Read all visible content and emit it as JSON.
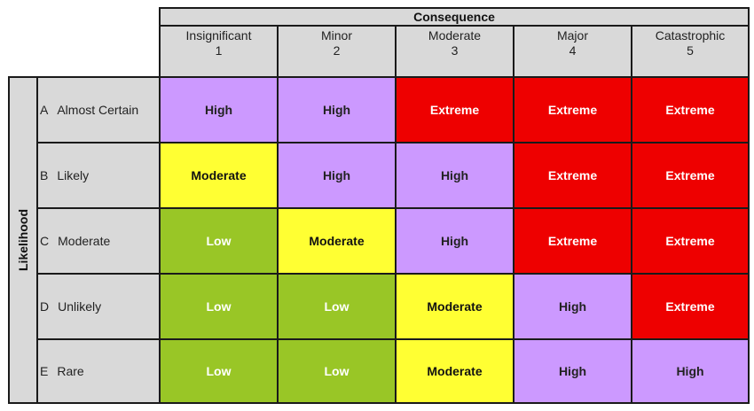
{
  "header": {
    "title": "Consequence"
  },
  "side_label": "Likelihood",
  "columns": [
    {
      "name": "Insignificant",
      "number": "1"
    },
    {
      "name": "Minor",
      "number": "2"
    },
    {
      "name": "Moderate",
      "number": "3"
    },
    {
      "name": "Major",
      "number": "4"
    },
    {
      "name": "Catastrophic",
      "number": "5"
    }
  ],
  "rows": [
    {
      "letter": "A",
      "name": "Almost Certain",
      "cells": [
        "High",
        "High",
        "Extreme",
        "Extreme",
        "Extreme"
      ]
    },
    {
      "letter": "B",
      "name": "Likely",
      "cells": [
        "Moderate",
        "High",
        "High",
        "Extreme",
        "Extreme"
      ]
    },
    {
      "letter": "C",
      "name": "Moderate",
      "cells": [
        "Low",
        "Moderate",
        "High",
        "Extreme",
        "Extreme"
      ]
    },
    {
      "letter": "D",
      "name": "Unlikely",
      "cells": [
        "Low",
        "Low",
        "Moderate",
        "High",
        "Extreme"
      ]
    },
    {
      "letter": "E",
      "name": "Rare",
      "cells": [
        "Low",
        "Low",
        "Moderate",
        "High",
        "High"
      ]
    }
  ],
  "colors": {
    "Low": {
      "bg": "#99c626",
      "fg": "#ffffff"
    },
    "Moderate": {
      "bg": "#ffff33",
      "fg": "#111111"
    },
    "High": {
      "bg": "#cc99ff",
      "fg": "#222222"
    },
    "Extreme": {
      "bg": "#ee0000",
      "fg": "#ffffff"
    }
  }
}
